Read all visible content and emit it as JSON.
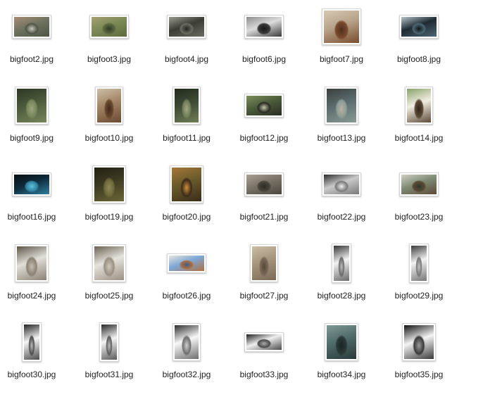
{
  "files": [
    {
      "name": "bigfoot2.jpg",
      "icon": "forest-photo-thumbnail",
      "shape": "wide",
      "palette": [
        "#6f7460",
        "#4f5544",
        "#a88c78",
        "#c9c8bb"
      ]
    },
    {
      "name": "bigfoot3.jpg",
      "icon": "meadow-photo-thumbnail",
      "shape": "wide",
      "palette": [
        "#7c8a58",
        "#5e6a3e",
        "#a7a173",
        "#2f3a27"
      ]
    },
    {
      "name": "bigfoot4.jpg",
      "icon": "forest-photo-thumbnail",
      "shape": "wide",
      "palette": [
        "#3b3d36",
        "#6a6c60",
        "#9b9c90",
        "#22241f"
      ]
    },
    {
      "name": "bigfoot6.jpg",
      "icon": "snow-figure-thumbnail",
      "shape": "wide",
      "palette": [
        "#dcdcdc",
        "#3a3a3a",
        "#8c8c8c",
        "#1a1a1a"
      ]
    },
    {
      "name": "bigfoot7.jpg",
      "icon": "bigfoot-figure-thumbnail",
      "shape": "portrait-wide",
      "palette": [
        "#b7a38a",
        "#7a4b2e",
        "#d7c9b4",
        "#4e2f1d"
      ]
    },
    {
      "name": "bigfoot8.jpg",
      "icon": "night-scene-thumbnail",
      "shape": "wide",
      "palette": [
        "#1f2b33",
        "#4d6673",
        "#b7c4c9",
        "#0d141a"
      ]
    },
    {
      "name": "bigfoot9.jpg",
      "icon": "forest-photo-thumbnail",
      "shape": "square",
      "palette": [
        "#4c5a3a",
        "#77855a",
        "#2c3524",
        "#9aa37a"
      ]
    },
    {
      "name": "bigfoot10.jpg",
      "icon": "bigfoot-figure-thumbnail",
      "shape": "portrait",
      "palette": [
        "#a28566",
        "#6b4a2f",
        "#cdbfa8",
        "#3f2a1a"
      ]
    },
    {
      "name": "bigfoot11.jpg",
      "icon": "forest-figure-thumbnail",
      "shape": "portrait",
      "palette": [
        "#3d4a34",
        "#6f7d56",
        "#222a1d",
        "#a2a783"
      ]
    },
    {
      "name": "bigfoot12.jpg",
      "icon": "forest-figure-thumbnail",
      "shape": "wide",
      "palette": [
        "#4a5d3a",
        "#2b2b24",
        "#7e8f5e",
        "#c1c6a6"
      ]
    },
    {
      "name": "bigfoot13.jpg",
      "icon": "forest-figure-thumbnail",
      "shape": "square",
      "palette": [
        "#5a6b6e",
        "#8a9b94",
        "#3a3f3c",
        "#b9b2a4"
      ]
    },
    {
      "name": "bigfoot14.jpg",
      "icon": "illustration-thumbnail",
      "shape": "portrait",
      "palette": [
        "#f1ede2",
        "#5c4a37",
        "#8aa36b",
        "#2f2619"
      ]
    },
    {
      "name": "bigfoot16.jpg",
      "icon": "silhouette-thumbnail",
      "shape": "wide",
      "palette": [
        "#0e2a3b",
        "#2f7f9c",
        "#0a0f14",
        "#5cc1db"
      ]
    },
    {
      "name": "bigfoot19.jpg",
      "icon": "forest-figure-thumbnail",
      "shape": "square",
      "palette": [
        "#3c3a22",
        "#6b6637",
        "#221f14",
        "#8e8a58"
      ]
    },
    {
      "name": "bigfoot20.jpg",
      "icon": "poster-thumbnail",
      "shape": "square",
      "palette": [
        "#6a5a2a",
        "#3b2c1a",
        "#a5773b",
        "#d18d3c"
      ]
    },
    {
      "name": "bigfoot21.jpg",
      "icon": "forest-photo-thumbnail",
      "shape": "wide",
      "palette": [
        "#7b7468",
        "#4a463c",
        "#aaa294",
        "#2e2b24"
      ]
    },
    {
      "name": "bigfoot22.jpg",
      "icon": "bw-photo-thumbnail",
      "shape": "wide",
      "palette": [
        "#c9c9c9",
        "#7a7a7a",
        "#2c2c2c",
        "#ededed"
      ]
    },
    {
      "name": "bigfoot23.jpg",
      "icon": "stamp-thumbnail",
      "shape": "wide",
      "palette": [
        "#7f8c76",
        "#5c4a36",
        "#cfd0c4",
        "#2f3a2c"
      ]
    },
    {
      "name": "bigfoot24.jpg",
      "icon": "sketch-thumbnail",
      "shape": "square",
      "palette": [
        "#e2dfd8",
        "#8b8274",
        "#5c5548",
        "#c2bcb0"
      ]
    },
    {
      "name": "bigfoot25.jpg",
      "icon": "sketch-thumbnail",
      "shape": "square",
      "palette": [
        "#e6e3dc",
        "#9a9082",
        "#6a6152",
        "#cfc9bd"
      ]
    },
    {
      "name": "bigfoot26.jpg",
      "icon": "landscape-thumbnail",
      "shape": "banner",
      "palette": [
        "#7ea8d8",
        "#b06f3f",
        "#e7e5dc",
        "#3a5f8c"
      ]
    },
    {
      "name": "bigfoot27.jpg",
      "icon": "rock-carving-thumbnail",
      "shape": "portrait",
      "palette": [
        "#a6947c",
        "#7a6a56",
        "#cbbda6",
        "#57493a"
      ]
    },
    {
      "name": "bigfoot28.jpg",
      "icon": "sketch-figure-thumbnail",
      "shape": "tall",
      "palette": [
        "#f2f2f2",
        "#6a6a6a",
        "#333333",
        "#bdbdbd"
      ]
    },
    {
      "name": "bigfoot29.jpg",
      "icon": "sketch-figure-thumbnail",
      "shape": "tall",
      "palette": [
        "#f2f2f2",
        "#777777",
        "#3a3a3a",
        "#c4c4c4"
      ]
    },
    {
      "name": "bigfoot30.jpg",
      "icon": "sketch-figure-thumbnail",
      "shape": "tall",
      "palette": [
        "#f5f5f5",
        "#4d4d4d",
        "#222222",
        "#bbbbbb"
      ]
    },
    {
      "name": "bigfoot31.jpg",
      "icon": "sketch-figure-thumbnail",
      "shape": "tall",
      "palette": [
        "#f3f3f3",
        "#5a5a5a",
        "#262626",
        "#c0c0c0"
      ]
    },
    {
      "name": "bigfoot32.jpg",
      "icon": "sketch-figure-thumbnail",
      "shape": "portrait",
      "palette": [
        "#f7f7f7",
        "#6e6e6e",
        "#2e2e2e",
        "#cfcfcf"
      ]
    },
    {
      "name": "bigfoot33.jpg",
      "icon": "face-drawing-thumbnail",
      "shape": "banner",
      "palette": [
        "#efefef",
        "#4a4a4a",
        "#1f1f1f",
        "#a9a9a9"
      ]
    },
    {
      "name": "bigfoot34.jpg",
      "icon": "forest-figure-thumbnail",
      "shape": "square",
      "palette": [
        "#4f6b6a",
        "#2a3a39",
        "#7f9a95",
        "#1a2322"
      ]
    },
    {
      "name": "bigfoot35.jpg",
      "icon": "face-drawing-thumbnail",
      "shape": "square",
      "palette": [
        "#f3f3f3",
        "#3a3a3a",
        "#111111",
        "#9a9a9a"
      ]
    }
  ]
}
